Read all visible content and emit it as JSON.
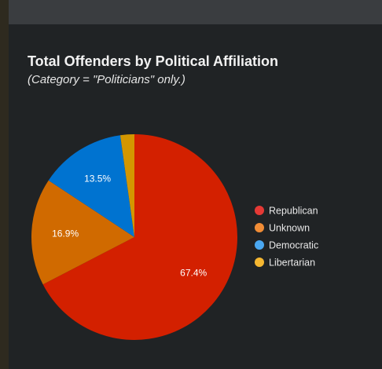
{
  "chart_data": {
    "type": "pie",
    "title": "Total Offenders by Political Affiliation",
    "subtitle": "(Category = \"Politicians\" only.)",
    "categories": [
      "Republican",
      "Unknown",
      "Democratic",
      "Libertarian"
    ],
    "values": [
      67.4,
      16.9,
      13.5,
      2.2
    ],
    "data_labels": [
      "67.4%",
      "16.9%",
      "13.5%",
      ""
    ],
    "colors": [
      "#d32000",
      "#d06a00",
      "#0073d0",
      "#d39600"
    ],
    "legend_colors": [
      "#e53935",
      "#f08c36",
      "#4aa8f2",
      "#f5b731"
    ],
    "legend_position": "right",
    "start_angle_deg": 0,
    "direction": "clockwise"
  }
}
